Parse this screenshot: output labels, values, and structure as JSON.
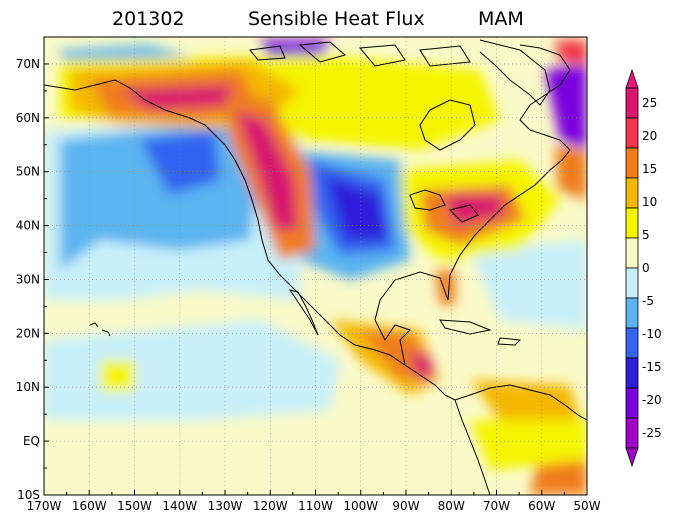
{
  "title": {
    "period": "201302",
    "variable": "Sensible Heat Flux",
    "season": "MAM"
  },
  "chart_data": {
    "type": "heatmap",
    "projection": "lat-lon",
    "xlim": [
      -170,
      -50
    ],
    "ylim": [
      -10,
      75
    ],
    "x_tick_labels": [
      "170W",
      "160W",
      "150W",
      "140W",
      "130W",
      "120W",
      "110W",
      "100W",
      "90W",
      "80W",
      "70W",
      "60W",
      "50W"
    ],
    "y_tick_labels": [
      "10S",
      "EQ",
      "10N",
      "20N",
      "30N",
      "40N",
      "50N",
      "60N",
      "70N"
    ],
    "x_ticks": [
      -170,
      -160,
      -150,
      -140,
      -130,
      -120,
      -110,
      -100,
      -90,
      -80,
      -70,
      -60,
      -50
    ],
    "y_ticks": [
      -10,
      0,
      10,
      20,
      30,
      40,
      50,
      60,
      70
    ],
    "grid": true,
    "colorbar": {
      "labels": [
        "25",
        "20",
        "15",
        "10",
        "5",
        "0",
        "-5",
        "-10",
        "-15",
        "-20",
        "-25"
      ],
      "levels": [
        25,
        20,
        15,
        10,
        5,
        0,
        -5,
        -10,
        -15,
        -20,
        -25
      ],
      "colors_top_to_bottom": [
        "#d9156e",
        "#f0364a",
        "#f07d1a",
        "#f5b800",
        "#f5f500",
        "#fafac8",
        "#c8f0fa",
        "#5ab4f0",
        "#3264f0",
        "#2d1edc",
        "#7a00e0",
        "#a000c8"
      ],
      "triangle_top_color": "#e8157a",
      "triangle_bottom_color": "#a000c8",
      "placement": "right"
    }
  }
}
